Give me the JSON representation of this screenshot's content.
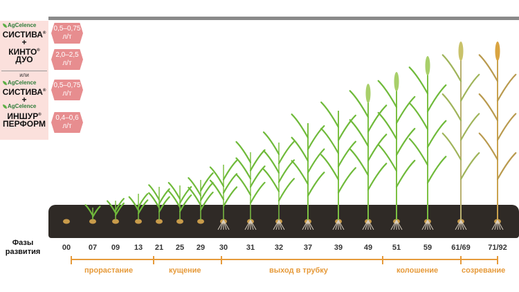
{
  "products": {
    "brand": "AgCelence",
    "p1": "СИСТИВА",
    "plus1": "+",
    "p2a": "КИНТО",
    "p2b": "ДУО",
    "or": "или",
    "p3": "СИСТИВА",
    "plus2": "+",
    "p4a": "ИНШУР",
    "p4b": "ПЕРФОРМ",
    "reg": "®"
  },
  "doses": {
    "d1": "0,5–0,75",
    "d2": "2,0–2,5",
    "d3": "0,5–0,75",
    "d4": "0,4–0,6",
    "unit": "л/т"
  },
  "phases_label": [
    "Фазы",
    "развития"
  ],
  "stages": [
    "00",
    "07",
    "09",
    "13",
    "21",
    "25",
    "29",
    "30",
    "31",
    "32",
    "37",
    "39",
    "49",
    "51",
    "59",
    "61/69",
    "71/92"
  ],
  "segments": [
    "прорастание",
    "кущение",
    "выход в трубку",
    "колошение",
    "созревание"
  ],
  "colors": {
    "accent": "#e69a3a",
    "dose_bg": "#e78d8f",
    "panel_bg": "#fbe0dc",
    "soil": "#2f2a26",
    "leaf": "#5cae44"
  }
}
